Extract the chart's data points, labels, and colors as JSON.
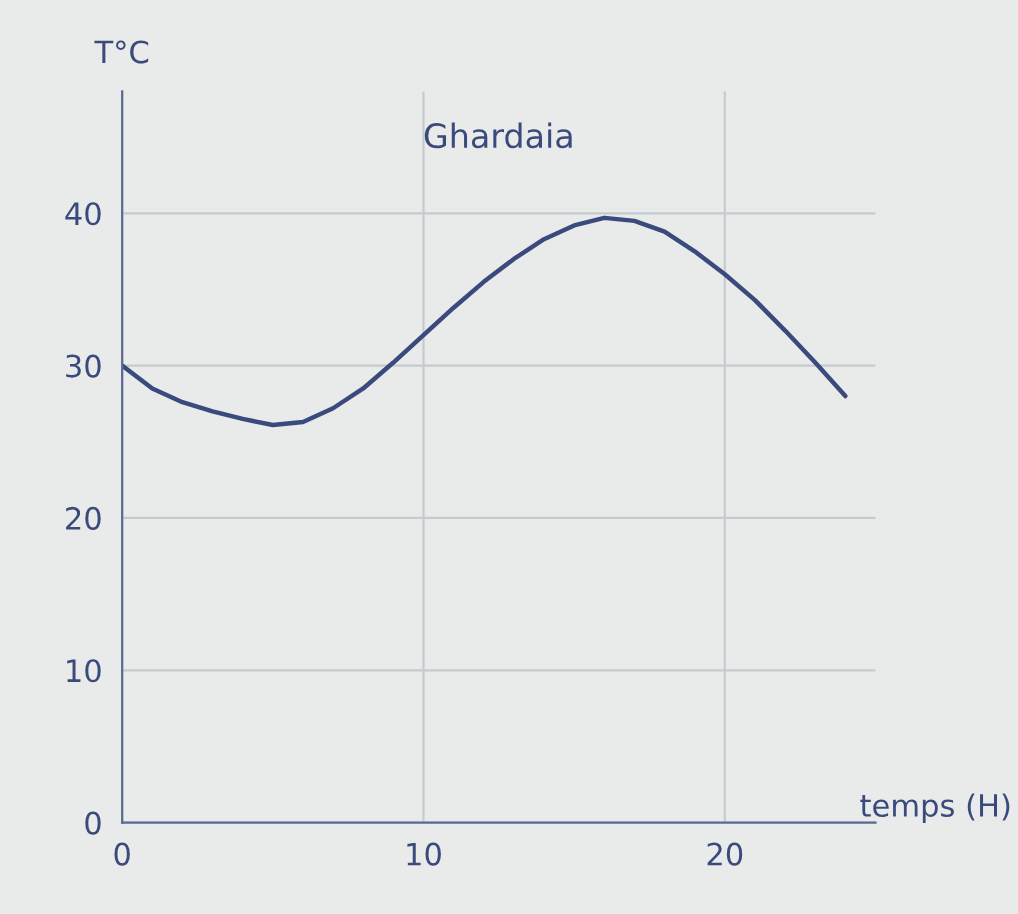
{
  "chart_data": {
    "type": "line",
    "title": "Ghardaia",
    "xlabel": "temps (H)",
    "ylabel": "T°C",
    "x": [
      0,
      1,
      2,
      3,
      4,
      5,
      6,
      7,
      8,
      9,
      10,
      11,
      12,
      13,
      14,
      15,
      16,
      17,
      18,
      19,
      20,
      21,
      22,
      23,
      24
    ],
    "series": [
      {
        "color": "#3b4a7c",
        "values": [
          30,
          28.5,
          27.6,
          27,
          26.5,
          26.1,
          26.3,
          27.2,
          28.5,
          30.2,
          32,
          33.8,
          35.5,
          37,
          38.3,
          39.2,
          39.7,
          39.5,
          38.8,
          37.5,
          36,
          34.3,
          32.3,
          30.2,
          28
        ]
      }
    ],
    "xlim": [
      0,
      25
    ],
    "ylim": [
      0,
      48
    ],
    "xticks": [
      0,
      10,
      20
    ],
    "yticks": [
      0,
      10,
      20,
      30,
      40
    ],
    "grid": true,
    "legend": false,
    "marker": "none",
    "line_style": "solid"
  }
}
